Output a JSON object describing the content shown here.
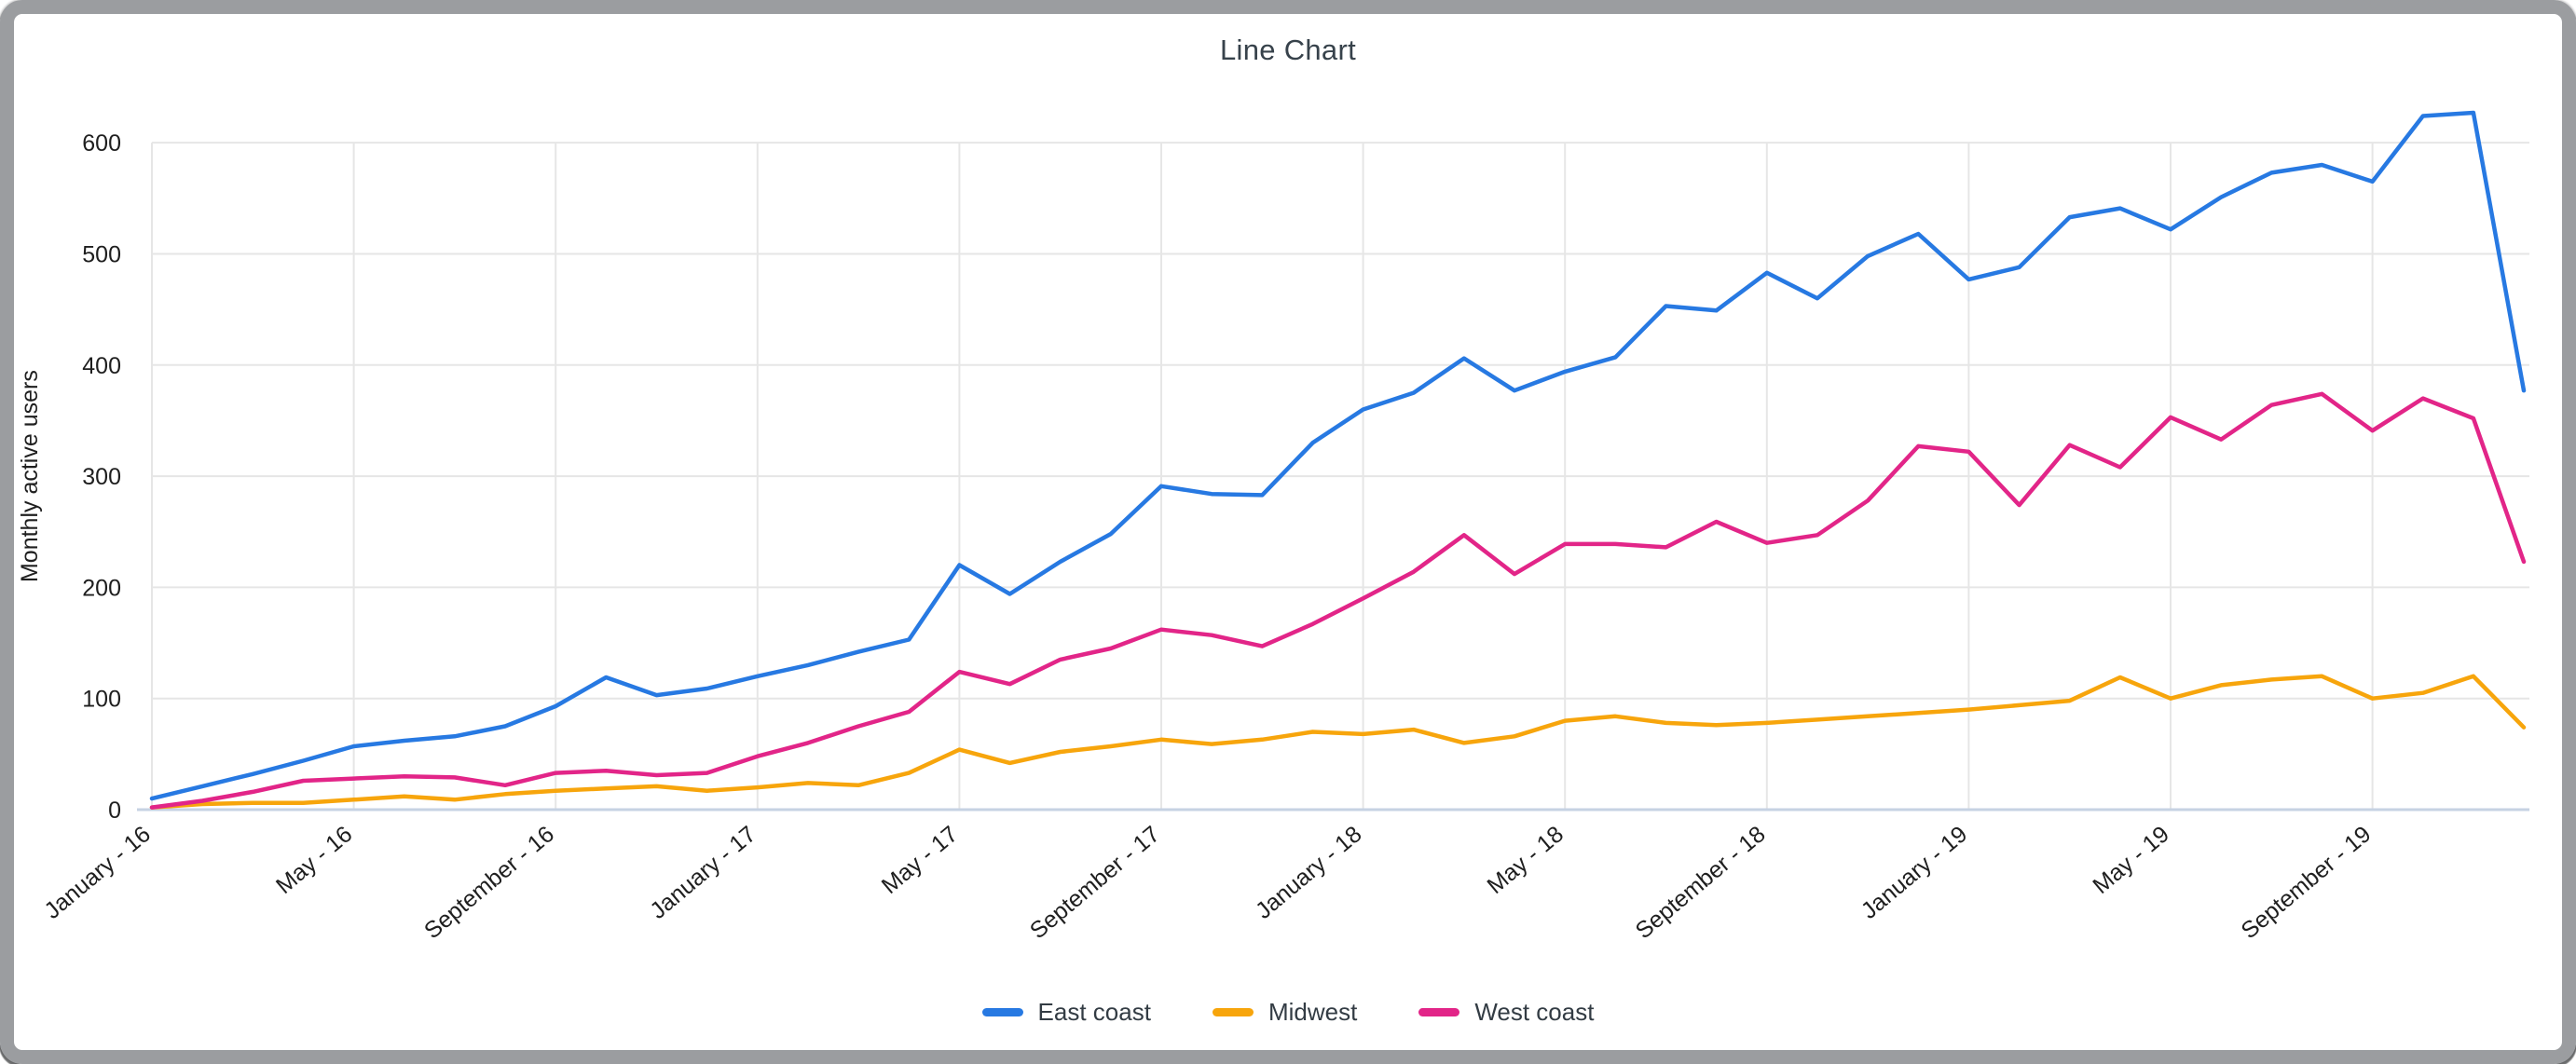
{
  "window": {
    "frame_color": "#9b9da0",
    "background": "#ffffff"
  },
  "chart_data": {
    "type": "line",
    "title": "Line Chart",
    "xlabel": "",
    "ylabel": "Monthly active users",
    "ylim": [
      0,
      640
    ],
    "yticks": [
      0,
      100,
      200,
      300,
      400,
      500,
      600
    ],
    "grid": true,
    "legend_position": "bottom",
    "x_tick_labels": [
      "January - 16",
      "May - 16",
      "September - 16",
      "January - 17",
      "May - 17",
      "September - 17",
      "January - 18",
      "May - 18",
      "September - 18",
      "January - 19",
      "May - 19",
      "September - 19"
    ],
    "categories": [
      "Jan-16",
      "Feb-16",
      "Mar-16",
      "Apr-16",
      "May-16",
      "Jun-16",
      "Jul-16",
      "Aug-16",
      "Sep-16",
      "Oct-16",
      "Nov-16",
      "Dec-16",
      "Jan-17",
      "Feb-17",
      "Mar-17",
      "Apr-17",
      "May-17",
      "Jun-17",
      "Jul-17",
      "Aug-17",
      "Sep-17",
      "Oct-17",
      "Nov-17",
      "Dec-17",
      "Jan-18",
      "Feb-18",
      "Mar-18",
      "Apr-18",
      "May-18",
      "Jun-18",
      "Jul-18",
      "Aug-18",
      "Sep-18",
      "Oct-18",
      "Nov-18",
      "Dec-18",
      "Jan-19",
      "Feb-19",
      "Mar-19",
      "Apr-19",
      "May-19",
      "Jun-19",
      "Jul-19",
      "Aug-19",
      "Sep-19",
      "Oct-19",
      "Nov-19",
      "Dec-19"
    ],
    "series": [
      {
        "name": "East coast",
        "color": "#2779e2",
        "values": [
          10,
          21,
          32,
          44,
          57,
          62,
          66,
          75,
          93,
          119,
          103,
          109,
          120,
          130,
          142,
          153,
          220,
          194,
          223,
          248,
          291,
          284,
          283,
          330,
          360,
          375,
          406,
          377,
          394,
          407,
          453,
          449,
          483,
          460,
          498,
          518,
          477,
          488,
          533,
          541,
          522,
          551,
          573,
          580,
          565,
          624,
          627,
          377
        ]
      },
      {
        "name": "Midwest",
        "color": "#f7a50c",
        "values": [
          2,
          5,
          6,
          6,
          9,
          12,
          9,
          14,
          17,
          19,
          21,
          17,
          20,
          24,
          22,
          33,
          54,
          42,
          52,
          57,
          63,
          59,
          63,
          70,
          68,
          72,
          60,
          66,
          80,
          84,
          78,
          76,
          78,
          81,
          84,
          87,
          90,
          94,
          98,
          119,
          100,
          112,
          117,
          120,
          100,
          105,
          120,
          74
        ]
      },
      {
        "name": "West coast",
        "color": "#e22588",
        "values": [
          2,
          8,
          16,
          26,
          28,
          30,
          29,
          22,
          33,
          35,
          31,
          33,
          48,
          60,
          75,
          88,
          124,
          113,
          135,
          145,
          162,
          157,
          147,
          167,
          190,
          214,
          247,
          212,
          239,
          239,
          236,
          259,
          240,
          247,
          278,
          327,
          322,
          274,
          328,
          308,
          353,
          333,
          364,
          374,
          341,
          370,
          352,
          223
        ]
      }
    ],
    "gridline_color": "#e6e6e6",
    "baseline_color": "#c6d2e3"
  }
}
